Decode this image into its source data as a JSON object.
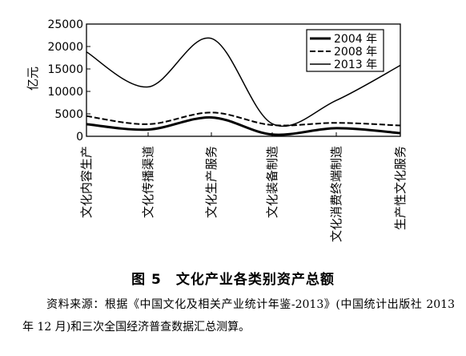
{
  "chart_data": {
    "type": "line",
    "ylabel": "亿元",
    "xlabel": "",
    "ylim": [
      0,
      25000
    ],
    "yticks": [
      0,
      5000,
      10000,
      15000,
      20000,
      25000
    ],
    "categories": [
      "文化内容生产",
      "文化传播渠道",
      "文化生产服务",
      "文化装备制造",
      "文化消费终端制造",
      "生产性文化服务"
    ],
    "series": [
      {
        "name": "2004 年",
        "style": "solid-bold",
        "values": [
          2700,
          1500,
          4200,
          400,
          1800,
          700
        ]
      },
      {
        "name": "2008 年",
        "style": "dashed",
        "values": [
          4500,
          2700,
          5300,
          2500,
          3000,
          2400
        ]
      },
      {
        "name": "2013 年",
        "style": "solid-thin",
        "values": [
          18800,
          11000,
          21800,
          2800,
          8000,
          15800
        ]
      }
    ],
    "legend_position": "top-right",
    "grid": false
  },
  "caption": "图 5　文化产业各类别资产总额",
  "source_note": "资料来源：根据《中国文化及相关产业统计年鉴-2013》(中国统计出版社 2013 年 12 月)和三次全国经济普查数据汇总测算。"
}
